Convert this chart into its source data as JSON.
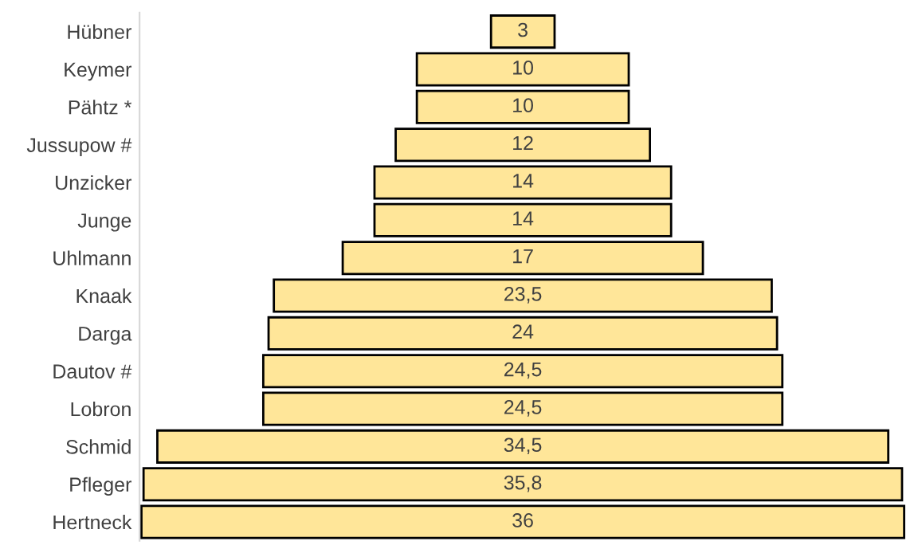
{
  "chart_data": {
    "type": "other",
    "categories": [
      "Hübner",
      "Keymer",
      "Pähtz *",
      "Jussupow #",
      "Unzicker",
      "Junge",
      "Uhlmann",
      "Knaak",
      "Darga",
      "Dautov #",
      "Lobron",
      "Schmid",
      "Pfleger",
      "Hertneck"
    ],
    "values": [
      3,
      10,
      10,
      12,
      14,
      14,
      17,
      23.5,
      24,
      24.5,
      24.5,
      34.5,
      35.8,
      36
    ],
    "value_labels": [
      "3",
      "10",
      "10",
      "12",
      "14",
      "14",
      "17",
      "23,5",
      "24",
      "24,5",
      "24,5",
      "34,5",
      "35,8",
      "36"
    ],
    "color": "#ffe699"
  }
}
